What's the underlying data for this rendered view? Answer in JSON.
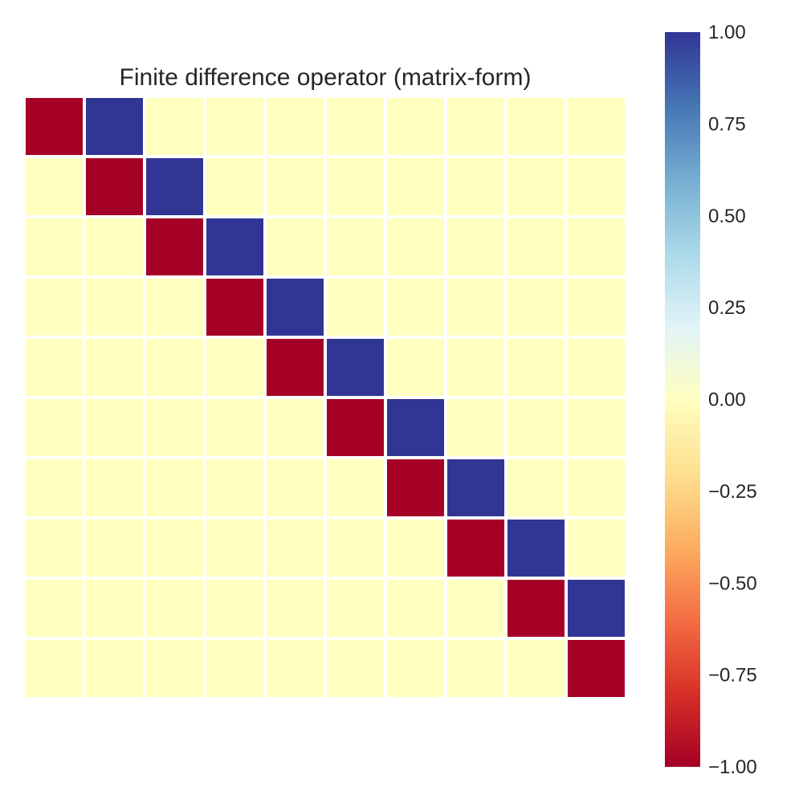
{
  "chart_data": {
    "type": "heatmap",
    "title": "Finite difference operator (matrix-form)",
    "xlabel": "",
    "ylabel": "",
    "rows": 10,
    "cols": 10,
    "values": [
      [
        -1,
        1,
        0,
        0,
        0,
        0,
        0,
        0,
        0,
        0
      ],
      [
        0,
        -1,
        1,
        0,
        0,
        0,
        0,
        0,
        0,
        0
      ],
      [
        0,
        0,
        -1,
        1,
        0,
        0,
        0,
        0,
        0,
        0
      ],
      [
        0,
        0,
        0,
        -1,
        1,
        0,
        0,
        0,
        0,
        0
      ],
      [
        0,
        0,
        0,
        0,
        -1,
        1,
        0,
        0,
        0,
        0
      ],
      [
        0,
        0,
        0,
        0,
        0,
        -1,
        1,
        0,
        0,
        0
      ],
      [
        0,
        0,
        0,
        0,
        0,
        0,
        -1,
        1,
        0,
        0
      ],
      [
        0,
        0,
        0,
        0,
        0,
        0,
        0,
        -1,
        1,
        0
      ],
      [
        0,
        0,
        0,
        0,
        0,
        0,
        0,
        0,
        -1,
        1
      ],
      [
        0,
        0,
        0,
        0,
        0,
        0,
        0,
        0,
        0,
        -1
      ]
    ],
    "colormap": "RdYlBu",
    "vmin": -1.0,
    "vmax": 1.0,
    "grid": false,
    "cell_border_color": "#ffffff",
    "colorbar": {
      "placement": "right",
      "ticks": [
        1.0,
        0.75,
        0.5,
        0.25,
        0.0,
        -0.25,
        -0.5,
        -0.75,
        -1.0
      ],
      "tick_labels": [
        "1.00",
        "0.75",
        "0.50",
        "0.25",
        "0.00",
        "−0.25",
        "−0.50",
        "−0.75",
        "−1.00"
      ]
    },
    "colors": {
      "negative": "#a50026",
      "zero": "#ffffbf",
      "positive": "#313695"
    }
  }
}
